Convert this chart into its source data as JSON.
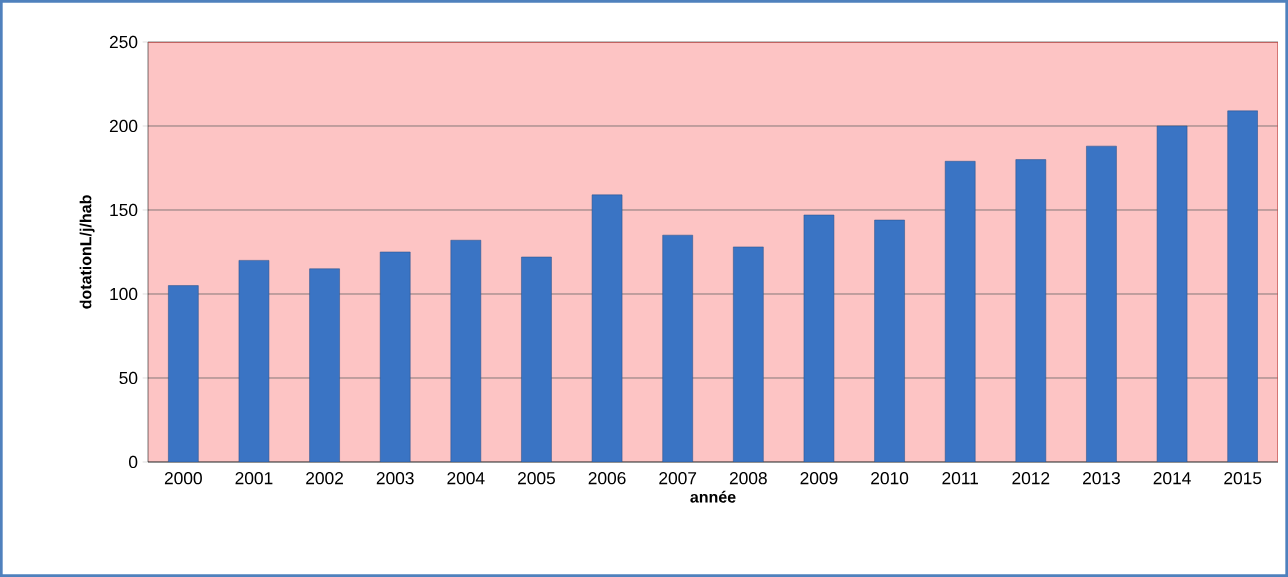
{
  "chart_data": {
    "type": "bar",
    "xlabel": "année",
    "ylabel": "dotationL/j/hab",
    "categories": [
      "2000",
      "2001",
      "2002",
      "2003",
      "2004",
      "2005",
      "2006",
      "2007",
      "2008",
      "2009",
      "2010",
      "2011",
      "2012",
      "2013",
      "2014",
      "2015"
    ],
    "values": [
      105,
      120,
      115,
      125,
      132,
      122,
      159,
      135,
      128,
      147,
      144,
      179,
      180,
      188,
      200,
      209
    ],
    "color": "#3a74c4",
    "ylim": [
      0,
      250
    ],
    "yticks": [
      0,
      50,
      100,
      150,
      200,
      250
    ],
    "grid": "y"
  }
}
